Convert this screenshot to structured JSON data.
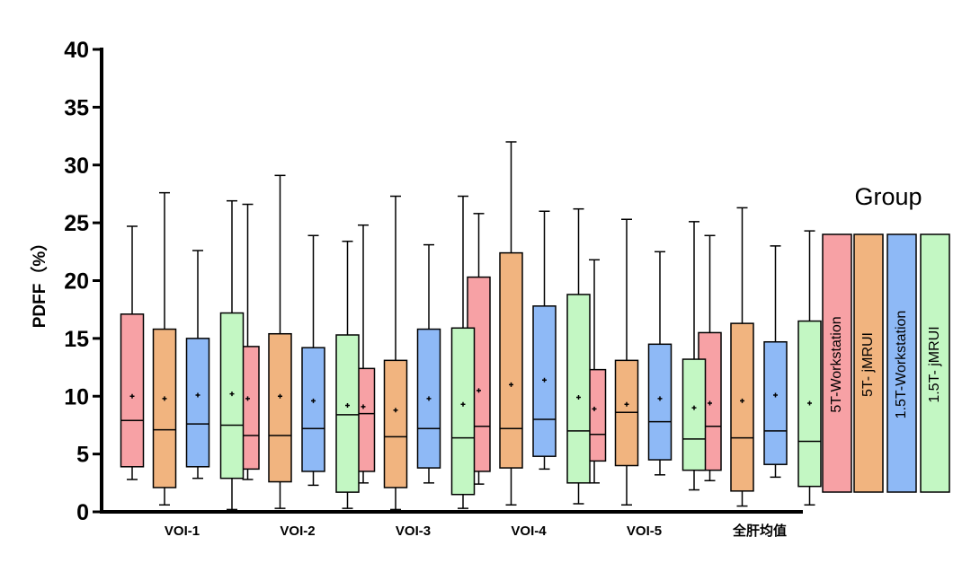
{
  "chart_data": {
    "type": "boxplot",
    "title": "",
    "xlabel": "",
    "ylabel": "PDFF（%）",
    "ylim": [
      0,
      40
    ],
    "yticks": [
      0,
      5,
      10,
      15,
      20,
      25,
      30,
      35,
      40
    ],
    "categories": [
      "VOI-1",
      "VOI-2",
      "VOI-3",
      "VOI-4",
      "VOI-5",
      "全肝均值"
    ],
    "legend": {
      "title": "Group",
      "placement": "right",
      "items": [
        {
          "label": "5T-Workstation",
          "color": "#f7a1a5"
        },
        {
          "label": "5T- jMRUI",
          "color": "#f1b47f"
        },
        {
          "label": "1.5T-Workstation",
          "color": "#8eb9f6"
        },
        {
          "label": "1.5T- jMRUI",
          "color": "#c3f7c3"
        }
      ]
    },
    "series": [
      {
        "name": "5T-Workstation",
        "color": "#f7a1a5",
        "boxes": [
          {
            "min": 2.8,
            "q1": 3.9,
            "median": 7.9,
            "q3": 17.1,
            "max": 24.7,
            "mean": 10.0
          },
          {
            "min": 2.8,
            "q1": 3.7,
            "median": 6.6,
            "q3": 14.3,
            "max": 26.6,
            "mean": 9.8
          },
          {
            "min": 2.5,
            "q1": 3.5,
            "median": 8.5,
            "q3": 12.4,
            "max": 24.8,
            "mean": 9.1
          },
          {
            "min": 2.4,
            "q1": 3.5,
            "median": 7.4,
            "q3": 20.3,
            "max": 25.8,
            "mean": 10.5
          },
          {
            "min": 2.5,
            "q1": 4.4,
            "median": 6.7,
            "q3": 12.3,
            "max": 21.8,
            "mean": 8.9
          },
          {
            "min": 2.7,
            "q1": 3.6,
            "median": 7.4,
            "q3": 15.5,
            "max": 23.9,
            "mean": 9.4
          }
        ]
      },
      {
        "name": "5T- jMRUI",
        "color": "#f1b47f",
        "boxes": [
          {
            "min": 0.6,
            "q1": 2.1,
            "median": 7.1,
            "q3": 15.8,
            "max": 27.6,
            "mean": 9.8
          },
          {
            "min": 0.3,
            "q1": 2.6,
            "median": 6.6,
            "q3": 15.4,
            "max": 29.1,
            "mean": 10.0
          },
          {
            "min": 0.2,
            "q1": 2.1,
            "median": 6.5,
            "q3": 13.1,
            "max": 27.3,
            "mean": 8.8
          },
          {
            "min": 0.6,
            "q1": 3.8,
            "median": 7.2,
            "q3": 22.4,
            "max": 32.0,
            "mean": 11.0
          },
          {
            "min": 0.6,
            "q1": 4.0,
            "median": 8.6,
            "q3": 13.1,
            "max": 25.3,
            "mean": 9.3
          },
          {
            "min": 0.5,
            "q1": 1.8,
            "median": 6.4,
            "q3": 16.3,
            "max": 26.3,
            "mean": 9.6
          }
        ]
      },
      {
        "name": "1.5T-Workstation",
        "color": "#8eb9f6",
        "boxes": [
          {
            "min": 2.9,
            "q1": 3.9,
            "median": 7.6,
            "q3": 15.0,
            "max": 22.6,
            "mean": 10.1
          },
          {
            "min": 2.3,
            "q1": 3.5,
            "median": 7.2,
            "q3": 14.2,
            "max": 23.9,
            "mean": 9.6
          },
          {
            "min": 2.5,
            "q1": 3.8,
            "median": 7.2,
            "q3": 15.8,
            "max": 23.1,
            "mean": 9.8
          },
          {
            "min": 3.7,
            "q1": 4.8,
            "median": 8.0,
            "q3": 17.8,
            "max": 26.0,
            "mean": 11.4
          },
          {
            "min": 3.2,
            "q1": 4.5,
            "median": 7.8,
            "q3": 14.5,
            "max": 22.5,
            "mean": 9.8
          },
          {
            "min": 3.0,
            "q1": 4.1,
            "median": 7.0,
            "q3": 14.7,
            "max": 23.0,
            "mean": 10.1
          }
        ]
      },
      {
        "name": "1.5T- jMRUI",
        "color": "#c3f7c3",
        "boxes": [
          {
            "min": 0.2,
            "q1": 2.9,
            "median": 7.5,
            "q3": 17.2,
            "max": 26.9,
            "mean": 10.2
          },
          {
            "min": 0.3,
            "q1": 1.7,
            "median": 8.4,
            "q3": 15.3,
            "max": 23.4,
            "mean": 9.2
          },
          {
            "min": 0.3,
            "q1": 1.5,
            "median": 6.4,
            "q3": 15.9,
            "max": 27.3,
            "mean": 9.3
          },
          {
            "min": 0.7,
            "q1": 2.5,
            "median": 7.0,
            "q3": 18.8,
            "max": 26.2,
            "mean": 9.9
          },
          {
            "min": 1.9,
            "q1": 3.6,
            "median": 6.3,
            "q3": 13.2,
            "max": 25.1,
            "mean": 9.0
          },
          {
            "min": 0.6,
            "q1": 2.2,
            "median": 6.1,
            "q3": 16.5,
            "max": 24.3,
            "mean": 9.4
          }
        ]
      }
    ]
  }
}
